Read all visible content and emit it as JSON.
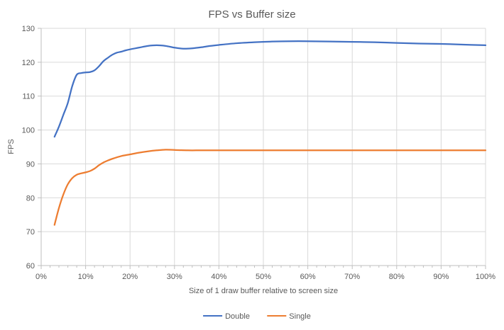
{
  "chart_data": {
    "type": "line",
    "title": "FPS vs Buffer size",
    "xlabel": "Size of 1 draw buffer relative to screen size",
    "ylabel": "FPS",
    "xlim": [
      0,
      100
    ],
    "ylim": [
      60,
      130
    ],
    "x_tick_values": [
      0,
      10,
      20,
      30,
      40,
      50,
      60,
      70,
      80,
      90,
      100
    ],
    "x_tick_labels": [
      "0%",
      "10%",
      "20%",
      "30%",
      "40%",
      "50%",
      "60%",
      "70%",
      "80%",
      "90%",
      "100%"
    ],
    "x_minor_tick_step": 2,
    "y_ticks": [
      60,
      70,
      80,
      90,
      100,
      110,
      120,
      130
    ],
    "grid": {
      "horizontal": true,
      "vertical": true
    },
    "legend_position": "bottom-center",
    "colors": {
      "grid": "#D9D9D9",
      "axis": "#BFBFBF",
      "text": "#595959",
      "background": "#FFFFFF"
    },
    "series": [
      {
        "name": "Double",
        "color": "#4472C4",
        "x": [
          3,
          4,
          5,
          6,
          7,
          8,
          9,
          10,
          11,
          12,
          13,
          14,
          15,
          16,
          17,
          18,
          19,
          20,
          22,
          24,
          26,
          28,
          30,
          32,
          34,
          36,
          38,
          40,
          44,
          48,
          52,
          56,
          60,
          65,
          70,
          75,
          80,
          85,
          90,
          95,
          100
        ],
        "y": [
          98,
          101,
          104.5,
          108,
          113,
          116.3,
          116.8,
          117,
          117.1,
          117.6,
          118.8,
          120.3,
          121.3,
          122.2,
          122.8,
          123.1,
          123.5,
          123.8,
          124.3,
          124.8,
          125,
          124.8,
          124.3,
          124,
          124.1,
          124.4,
          124.8,
          125.1,
          125.6,
          125.9,
          126.1,
          126.2,
          126.2,
          126.1,
          126,
          125.9,
          125.7,
          125.5,
          125.4,
          125.2,
          125
        ]
      },
      {
        "name": "Single",
        "color": "#ED7D31",
        "x": [
          3,
          4,
          5,
          6,
          7,
          8,
          9,
          10,
          11,
          12,
          13,
          14,
          15,
          16,
          18,
          20,
          22,
          24,
          26,
          28,
          30,
          33,
          36,
          40,
          45,
          50,
          55,
          60,
          65,
          70,
          75,
          80,
          85,
          90,
          95,
          100
        ],
        "y": [
          72,
          77,
          81,
          84,
          85.8,
          86.8,
          87.2,
          87.5,
          87.9,
          88.6,
          89.6,
          90.4,
          91,
          91.5,
          92.3,
          92.8,
          93.3,
          93.7,
          94,
          94.2,
          94.1,
          94,
          94,
          94,
          94,
          94,
          94,
          94,
          94,
          94,
          94,
          94,
          94,
          94,
          94,
          94
        ]
      }
    ]
  }
}
